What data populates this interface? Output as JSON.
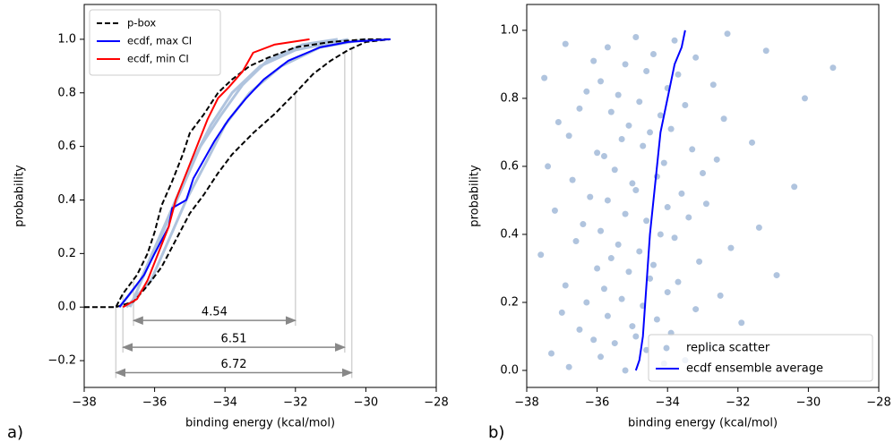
{
  "chart_data": [
    {
      "type": "line",
      "panel_label": "a)",
      "xlabel": "binding energy (kcal/mol)",
      "ylabel": "probability",
      "xlim": [
        -38,
        -28
      ],
      "ylim": [
        -0.3,
        1.13
      ],
      "xticks": [
        {
          "value": -38,
          "label": "−38"
        },
        {
          "value": -36,
          "label": "−36"
        },
        {
          "value": -34,
          "label": "−34"
        },
        {
          "value": -32,
          "label": "−32"
        },
        {
          "value": -30,
          "label": "−30"
        },
        {
          "value": -28,
          "label": "−28"
        }
      ],
      "yticks": [
        {
          "value": -0.2,
          "label": "−0.2"
        },
        {
          "value": 0,
          "label": "0.0"
        },
        0.2,
        0.4,
        0.6,
        0.8,
        {
          "value": 1,
          "label": "1.0"
        }
      ],
      "legend": "upper left",
      "series": [
        {
          "color": "#b0c4de",
          "x": [
            -37,
            -36.4,
            -35.9,
            -35.4,
            -34.9,
            -34.4,
            -33.8,
            -33,
            -32,
            -30.5
          ],
          "values": [
            0,
            0.1,
            0.25,
            0.4,
            0.55,
            0.68,
            0.8,
            0.9,
            0.96,
            1.0
          ]
        },
        {
          "color": "#b0c4de",
          "x": [
            -36.8,
            -36.1,
            -35.6,
            -35.1,
            -34.5,
            -34,
            -33.3,
            -32.4,
            -31.3,
            -30
          ],
          "values": [
            0,
            0.1,
            0.25,
            0.4,
            0.55,
            0.68,
            0.8,
            0.9,
            0.97,
            1.0
          ]
        },
        {
          "color": "#b0c4de",
          "x": [
            -36.7,
            -36.2,
            -35.7,
            -35.2,
            -34.7,
            -34.1,
            -33.5,
            -32.8,
            -31.8,
            -30.8
          ],
          "values": [
            0,
            0.15,
            0.3,
            0.45,
            0.6,
            0.72,
            0.83,
            0.92,
            0.98,
            1.0
          ]
        },
        {
          "name": "p-box",
          "color": "#000000",
          "dashed": true,
          "x": [
            -38,
            -37.1,
            -36.9,
            -36.5,
            -36.2,
            -36,
            -35.8,
            -35.5,
            -35.2,
            -35,
            -34.6,
            -34.2,
            -33.8,
            -33.3,
            -32.8,
            -32,
            -31,
            -30,
            -29.3,
            null,
            -37.1,
            -36.6,
            -36.2,
            -35.8,
            -35.4,
            -35,
            -34.6,
            -34.2,
            -33.8,
            -33.2,
            -32.6,
            -32,
            -31.5,
            -31,
            -30.5,
            -30,
            -29.3
          ],
          "values": [
            0,
            0,
            0.05,
            0.12,
            0.2,
            0.28,
            0.38,
            0.47,
            0.57,
            0.65,
            0.72,
            0.8,
            0.85,
            0.9,
            0.93,
            0.97,
            0.99,
            1.0,
            1.0,
            null,
            0,
            0.02,
            0.08,
            0.15,
            0.25,
            0.35,
            0.42,
            0.5,
            0.57,
            0.65,
            0.72,
            0.8,
            0.87,
            0.92,
            0.96,
            0.99,
            1.0
          ]
        },
        {
          "name": "ecdf, max CI",
          "color": "#0000ff",
          "x": [
            -37,
            -36.7,
            -36.3,
            -36,
            -35.6,
            -35.5,
            -35.1,
            -34.9,
            -34.6,
            -34.3,
            -33.9,
            -33.4,
            -32.9,
            -32.2,
            -31.3,
            -30.5,
            -29.3
          ],
          "values": [
            0,
            0.05,
            0.12,
            0.2,
            0.3,
            0.37,
            0.4,
            0.48,
            0.55,
            0.62,
            0.7,
            0.78,
            0.85,
            0.92,
            0.97,
            0.99,
            1.0
          ]
        },
        {
          "name": "ecdf, min CI",
          "color": "#ff0000",
          "x": [
            -36.9,
            -36.5,
            -36.2,
            -35.9,
            -35.6,
            -35.4,
            -35.1,
            -34.8,
            -34.5,
            -34.2,
            -33.9,
            -33.5,
            -33.2,
            -32.6,
            -31.6
          ],
          "values": [
            0,
            0.03,
            0.1,
            0.2,
            0.3,
            0.4,
            0.5,
            0.6,
            0.7,
            0.78,
            0.82,
            0.88,
            0.95,
            0.98,
            1.0
          ]
        }
      ],
      "annotations": [
        {
          "text": "4.54",
          "x1": -36.6,
          "x2": -32.0,
          "y": -0.05
        },
        {
          "text": "6.51",
          "x1": -36.9,
          "x2": -30.6,
          "y": -0.15
        },
        {
          "text": "6.72",
          "x1": -37.1,
          "x2": -30.4,
          "y": -0.245
        }
      ]
    },
    {
      "type": "scatter",
      "panel_label": "b)",
      "xlabel": "binding energy (kcal/mol)",
      "ylabel": "probability",
      "xlim": [
        -38,
        -28
      ],
      "ylim": [
        -0.05,
        1.076
      ],
      "xticks": [
        {
          "value": -38,
          "label": "−38"
        },
        {
          "value": -36,
          "label": "−36"
        },
        {
          "value": -34,
          "label": "−34"
        },
        {
          "value": -32,
          "label": "−32"
        },
        {
          "value": -30,
          "label": "−30"
        },
        {
          "value": -28,
          "label": "−28"
        }
      ],
      "yticks": [
        {
          "value": 0,
          "label": "0.0"
        },
        0.2,
        0.4,
        0.6,
        0.8,
        {
          "value": 1,
          "label": "1.0"
        }
      ],
      "legend": "lower right",
      "series": [
        {
          "name": "replica scatter",
          "type": "scatter",
          "color": "#b0c4de",
          "x": [
            -35.2,
            -36.8,
            -34.1,
            -33.5,
            -35.9,
            -37.3,
            -34.6,
            -32.8,
            -35.5,
            -36.1,
            -34.9,
            -33.9,
            -36.5,
            -35.0,
            -31.9,
            -34.3,
            -35.7,
            -37.0,
            -33.2,
            -34.7,
            -36.3,
            -35.3,
            -32.5,
            -34.0,
            -35.8,
            -36.9,
            -33.7,
            -34.5,
            -30.9,
            -35.1,
            -36.0,
            -34.4,
            -33.1,
            -35.6,
            -37.6,
            -34.8,
            -32.2,
            -35.4,
            -36.6,
            -33.8,
            -34.2,
            -35.9,
            -31.4,
            -36.4,
            -34.6,
            -33.4,
            -35.2,
            -37.2,
            -34.0,
            -32.9,
            -35.7,
            -36.2,
            -33.6,
            -34.9,
            -30.4,
            -35.0,
            -36.7,
            -34.3,
            -33.0,
            -35.5,
            -37.4,
            -34.1,
            -32.6,
            -35.8,
            -36.0,
            -33.3,
            -34.7,
            -31.6,
            -35.3,
            -36.8,
            -34.5,
            -33.9,
            -35.1,
            -37.1,
            -32.4,
            -34.2,
            -35.6,
            -36.5,
            -33.5,
            -34.8,
            -30.1,
            -35.4,
            -36.3,
            -34.0,
            -32.7,
            -35.9,
            -37.5,
            -33.7,
            -34.6,
            -29.3,
            -35.2,
            -36.1,
            -33.2,
            -34.4,
            -31.2,
            -35.7,
            -36.9,
            -33.8,
            -34.9,
            -32.3
          ],
          "values": [
            0,
            0.01,
            0.02,
            0.03,
            0.04,
            0.05,
            0.06,
            0.07,
            0.08,
            0.09,
            0.1,
            0.11,
            0.12,
            0.13,
            0.14,
            0.15,
            0.16,
            0.17,
            0.18,
            0.19,
            0.2,
            0.21,
            0.22,
            0.23,
            0.24,
            0.25,
            0.26,
            0.27,
            0.28,
            0.29,
            0.3,
            0.31,
            0.32,
            0.33,
            0.34,
            0.35,
            0.36,
            0.37,
            0.38,
            0.39,
            0.4,
            0.41,
            0.42,
            0.43,
            0.44,
            0.45,
            0.46,
            0.47,
            0.48,
            0.49,
            0.5,
            0.51,
            0.52,
            0.53,
            0.54,
            0.55,
            0.56,
            0.57,
            0.58,
            0.59,
            0.6,
            0.61,
            0.62,
            0.63,
            0.64,
            0.65,
            0.66,
            0.67,
            0.68,
            0.69,
            0.7,
            0.71,
            0.72,
            0.73,
            0.74,
            0.75,
            0.76,
            0.77,
            0.78,
            0.79,
            0.8,
            0.81,
            0.82,
            0.83,
            0.84,
            0.85,
            0.86,
            0.87,
            0.88,
            0.89,
            0.9,
            0.91,
            0.92,
            0.93,
            0.94,
            0.95,
            0.96,
            0.97,
            0.98,
            0.99
          ]
        },
        {
          "name": "ecdf ensemble average",
          "type": "line",
          "color": "#0000ff",
          "x": [
            -34.9,
            -34.8,
            -34.7,
            -34.6,
            -34.5,
            -34.4,
            -34.3,
            -34.2,
            -34.1,
            -33.9,
            -33.8,
            -33.6,
            -33.5
          ],
          "values": [
            0,
            0.03,
            0.1,
            0.25,
            0.4,
            0.5,
            0.6,
            0.7,
            0.75,
            0.85,
            0.9,
            0.95,
            1.0
          ]
        }
      ]
    }
  ]
}
